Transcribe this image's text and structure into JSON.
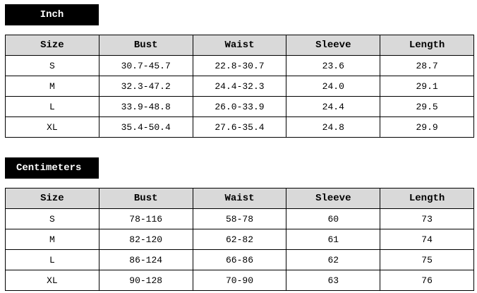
{
  "sections": [
    {
      "title": "Inch",
      "headers": [
        "Size",
        "Bust",
        "Waist",
        "Sleeve",
        "Length"
      ],
      "rows": [
        [
          "S",
          "30.7-45.7",
          "22.8-30.7",
          "23.6",
          "28.7"
        ],
        [
          "M",
          "32.3-47.2",
          "24.4-32.3",
          "24.0",
          "29.1"
        ],
        [
          "L",
          "33.9-48.8",
          "26.0-33.9",
          "24.4",
          "29.5"
        ],
        [
          "XL",
          "35.4-50.4",
          "27.6-35.4",
          "24.8",
          "29.9"
        ]
      ]
    },
    {
      "title": "Centimeters",
      "headers": [
        "Size",
        "Bust",
        "Waist",
        "Sleeve",
        "Length"
      ],
      "rows": [
        [
          "S",
          "78-116",
          "58-78",
          "60",
          "73"
        ],
        [
          "M",
          "82-120",
          "62-82",
          "61",
          "74"
        ],
        [
          "L",
          "86-124",
          "66-86",
          "62",
          "75"
        ],
        [
          "XL",
          "90-128",
          "70-90",
          "63",
          "76"
        ]
      ]
    }
  ],
  "colors": {
    "label_bg": "#000000",
    "header_bg": "#d9d9d9"
  }
}
